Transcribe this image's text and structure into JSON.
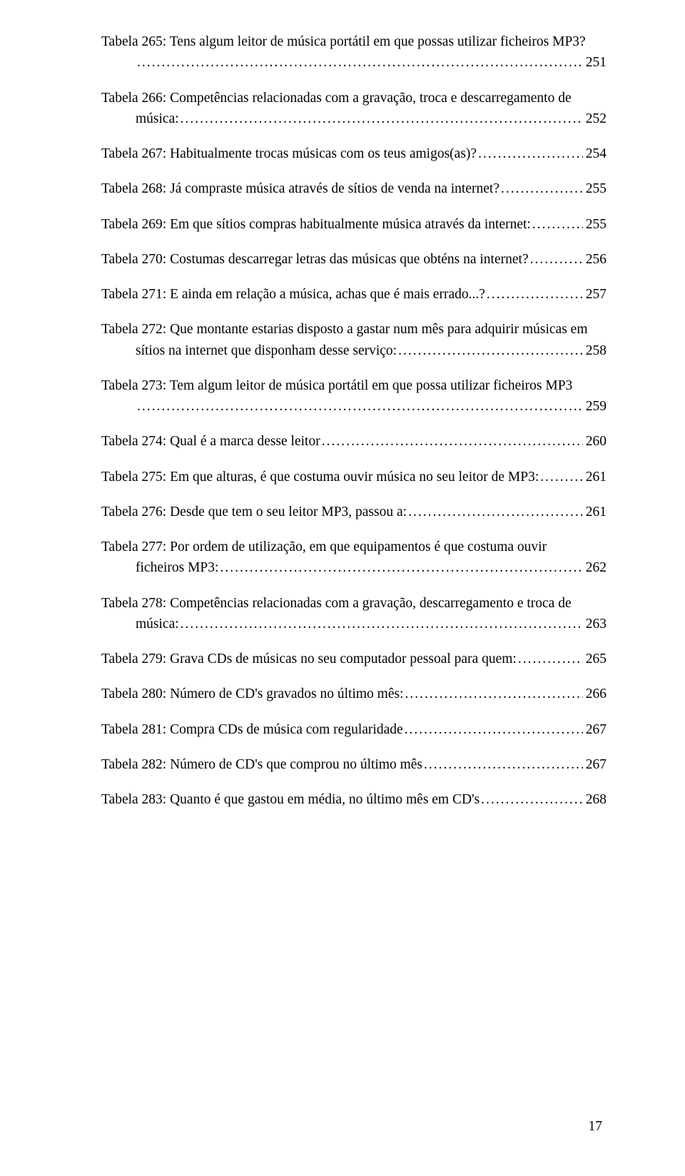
{
  "pageNumber": "17",
  "entries": [
    {
      "lines": [
        "Tabela 265: Tens algum leitor de música portátil em que possas utilizar ficheiros MP3?"
      ],
      "last": "",
      "page": "251",
      "indentLast": true
    },
    {
      "lines": [
        "Tabela 266: Competências relacionadas com a gravação, troca e descarregamento de"
      ],
      "last": "música:",
      "page": "252",
      "indentLast": true
    },
    {
      "lines": [],
      "last": "Tabela 267: Habitualmente trocas músicas com os teus amigos(as)?",
      "page": "254",
      "indentLast": false
    },
    {
      "lines": [],
      "last": "Tabela 268: Já compraste música através de sítios de venda na internet?",
      "page": "255",
      "indentLast": false
    },
    {
      "lines": [],
      "last": "Tabela 269: Em que sítios compras habitualmente música através da internet:",
      "page": "255",
      "indentLast": false
    },
    {
      "lines": [],
      "last": "Tabela 270: Costumas descarregar letras das músicas que obténs na internet?",
      "page": "256",
      "indentLast": false
    },
    {
      "lines": [],
      "last": "Tabela 271: E ainda em relação a música, achas que é mais errado...?",
      "page": "257",
      "indentLast": false
    },
    {
      "lines": [
        "Tabela 272: Que montante estarias disposto a gastar num mês para adquirir músicas em"
      ],
      "last": "sítios na internet que disponham desse serviço:",
      "page": "258",
      "indentLast": true
    },
    {
      "lines": [
        "Tabela 273: Tem algum leitor de música portátil em que possa utilizar ficheiros MP3"
      ],
      "last": "",
      "page": "259",
      "indentLast": true
    },
    {
      "lines": [],
      "last": "Tabela 274: Qual é a marca desse leitor",
      "page": "260",
      "indentLast": false
    },
    {
      "lines": [],
      "last": "Tabela 275: Em que alturas, é que costuma ouvir música no seu leitor de MP3:",
      "page": "261",
      "indentLast": false
    },
    {
      "lines": [],
      "last": "Tabela 276: Desde que tem o seu leitor MP3, passou a:",
      "page": "261",
      "indentLast": false
    },
    {
      "lines": [
        "Tabela 277: Por ordem de utilização, em que equipamentos é que costuma ouvir"
      ],
      "last": "ficheiros MP3:",
      "page": "262",
      "indentLast": true
    },
    {
      "lines": [
        "Tabela 278: Competências relacionadas com a gravação, descarregamento e troca de"
      ],
      "last": "música:",
      "page": "263",
      "indentLast": true
    },
    {
      "lines": [],
      "last": "Tabela 279: Grava CDs de músicas no seu computador pessoal para quem:",
      "page": "265",
      "indentLast": false
    },
    {
      "lines": [],
      "last": "Tabela 280: Número de CD's gravados no último mês:",
      "page": "266",
      "indentLast": false
    },
    {
      "lines": [],
      "last": "Tabela 281: Compra CDs de música com regularidade",
      "page": "267",
      "indentLast": false
    },
    {
      "lines": [],
      "last": "Tabela 282: Número de CD's que comprou no último mês",
      "page": "267",
      "indentLast": false
    },
    {
      "lines": [],
      "last": "Tabela 283: Quanto é que gastou em média, no último mês em CD's",
      "page": "268",
      "indentLast": false
    }
  ]
}
